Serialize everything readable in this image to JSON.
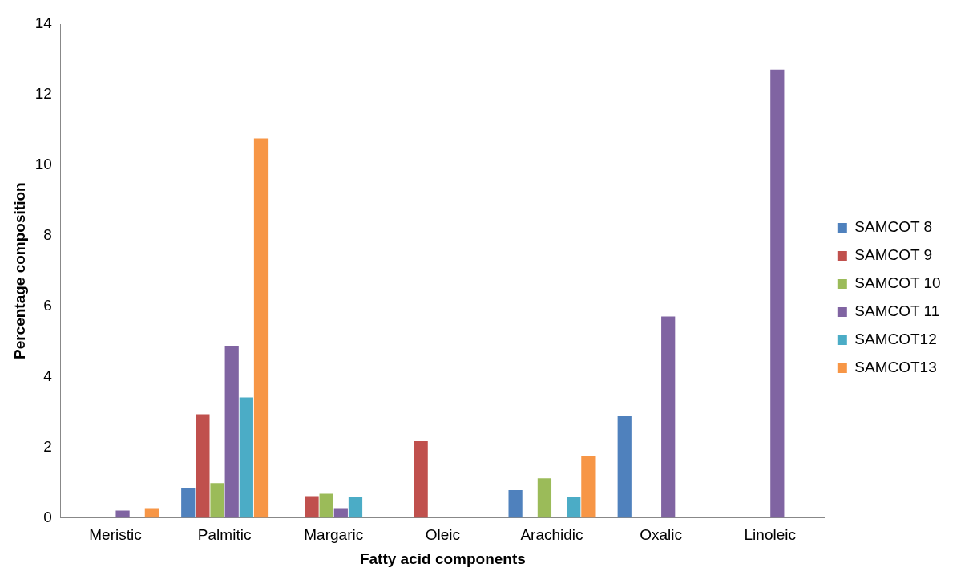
{
  "chart_data": {
    "type": "bar",
    "xlabel": "Fatty acid components",
    "ylabel": "Percentage composition",
    "categories": [
      "Meristic",
      "Palmitic",
      "Margaric",
      "Oleic",
      "Arachidic",
      "Oxalic",
      "Linoleic"
    ],
    "series": [
      {
        "name": "SAMCOT 8",
        "color": "#4f81bd",
        "values": [
          null,
          0.85,
          null,
          null,
          0.78,
          2.9,
          null
        ]
      },
      {
        "name": "SAMCOT 9",
        "color": "#c0504d",
        "values": [
          null,
          2.93,
          0.61,
          2.17,
          null,
          null,
          null
        ]
      },
      {
        "name": "SAMCOT 10",
        "color": "#9bbb59",
        "values": [
          null,
          0.98,
          0.68,
          null,
          1.12,
          null,
          null
        ]
      },
      {
        "name": "SAMCOT 11",
        "color": "#8064a2",
        "values": [
          0.2,
          4.88,
          0.27,
          null,
          null,
          5.71,
          12.71
        ]
      },
      {
        "name": "SAMCOT12",
        "color": "#4bacc6",
        "values": [
          null,
          3.41,
          0.59,
          null,
          0.59,
          null,
          null
        ]
      },
      {
        "name": "SAMCOT13",
        "color": "#f79646",
        "values": [
          0.27,
          10.76,
          null,
          null,
          1.76,
          null,
          null
        ]
      }
    ],
    "ylim": [
      0,
      14
    ],
    "yticks": [
      0,
      2,
      4,
      6,
      8,
      10,
      12,
      14
    ],
    "grid": false,
    "legend": "right"
  }
}
